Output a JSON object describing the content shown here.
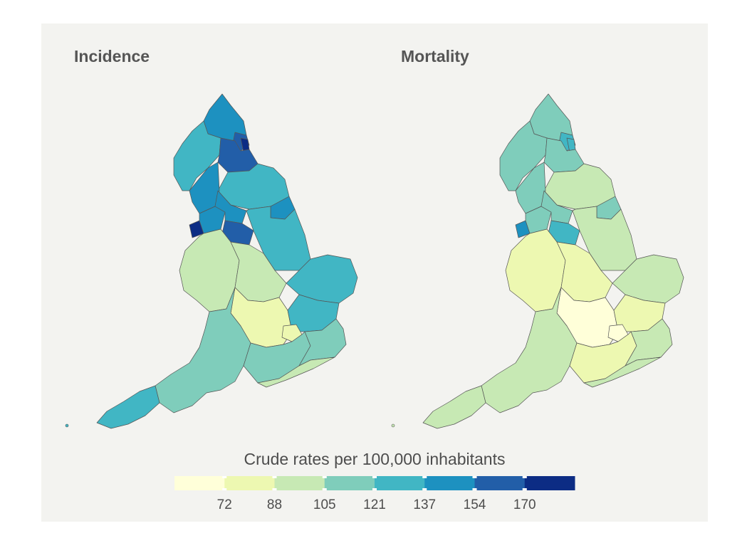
{
  "maps": [
    {
      "id": "incidence",
      "title": "Incidence",
      "level": 4,
      "overrides": {
        "north": 5,
        "tyne": 6,
        "wear": 7,
        "durham": 6,
        "cumbria": 4,
        "yorkshire": 4,
        "humber": 5,
        "lancs": 5,
        "merseyside": 7,
        "manchester": 5,
        "wyorks": 5,
        "syorks": 6,
        "lincs": 4,
        "eastanglia": 4,
        "midlands": 2,
        "wales_border": 2,
        "southwest": 3,
        "cornwall": 4,
        "southeast": 3,
        "london": 1,
        "kent": 3,
        "essex": 4,
        "oxford": 1,
        "sussex": 2
      }
    },
    {
      "id": "mortality",
      "title": "Mortality",
      "level": 2,
      "overrides": {
        "north": 3,
        "tyne": 4,
        "wear": 4,
        "durham": 3,
        "cumbria": 3,
        "yorkshire": 2,
        "humber": 3,
        "lancs": 3,
        "merseyside": 5,
        "manchester": 3,
        "wyorks": 3,
        "syorks": 4,
        "lincs": 2,
        "eastanglia": 2,
        "midlands": 1,
        "wales_border": 1,
        "southwest": 2,
        "cornwall": 2,
        "southeast": 1,
        "london": 0,
        "kent": 2,
        "essex": 1,
        "oxford": 0,
        "sussex": 2
      }
    }
  ],
  "legend": {
    "title": "Crude rates per 100,000 inhabitants",
    "colors": [
      "#ffffd9",
      "#edf8b1",
      "#c7e9b4",
      "#7fcdbb",
      "#41b6c4",
      "#1d91c0",
      "#225ea8",
      "#0c2c84"
    ],
    "ticks": [
      "72",
      "88",
      "105",
      "121",
      "137",
      "154",
      "170"
    ]
  }
}
